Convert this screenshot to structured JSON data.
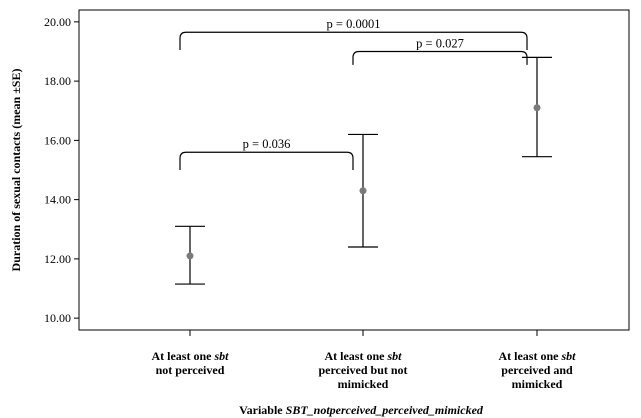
{
  "chart_data": {
    "type": "errorbar",
    "ylabel": "Duration of sexual contacts (mean ±SE)",
    "xlabel": {
      "prefix": "Variable ",
      "italic": "SBT_notperceived_perceived_mimicked"
    },
    "ylim": [
      9.6,
      20.4
    ],
    "yticks": [
      10,
      12,
      14,
      16,
      18,
      20
    ],
    "ytick_labels": [
      "10.00",
      "12.00",
      "14.00",
      "16.00",
      "18.00",
      "20.00"
    ],
    "categories": [
      [
        "At least one |sbt|",
        "not perceived"
      ],
      [
        "At least one |sbt|",
        "perceived but not",
        "mimicked"
      ],
      [
        "At least one |sbt|",
        "perceived and",
        "mimicked"
      ]
    ],
    "series": [
      {
        "mean": [
          12.1,
          14.3,
          17.1
        ],
        "lower": [
          11.15,
          12.4,
          15.45
        ],
        "upper": [
          13.1,
          16.2,
          18.8
        ]
      }
    ],
    "comparisons": [
      {
        "from": 0,
        "to": 1,
        "label": "p = 0.036",
        "y": 15.6,
        "drop": 0.6
      },
      {
        "from": 1,
        "to": 2,
        "label": "p = 0.027",
        "y": 19.0,
        "drop": 0.45
      },
      {
        "from": 0,
        "to": 2,
        "label": "p = 0.0001",
        "y": 19.65,
        "drop": 0.6
      }
    ],
    "colors": {
      "point": "#7a7a7a",
      "line": "#000000"
    }
  }
}
